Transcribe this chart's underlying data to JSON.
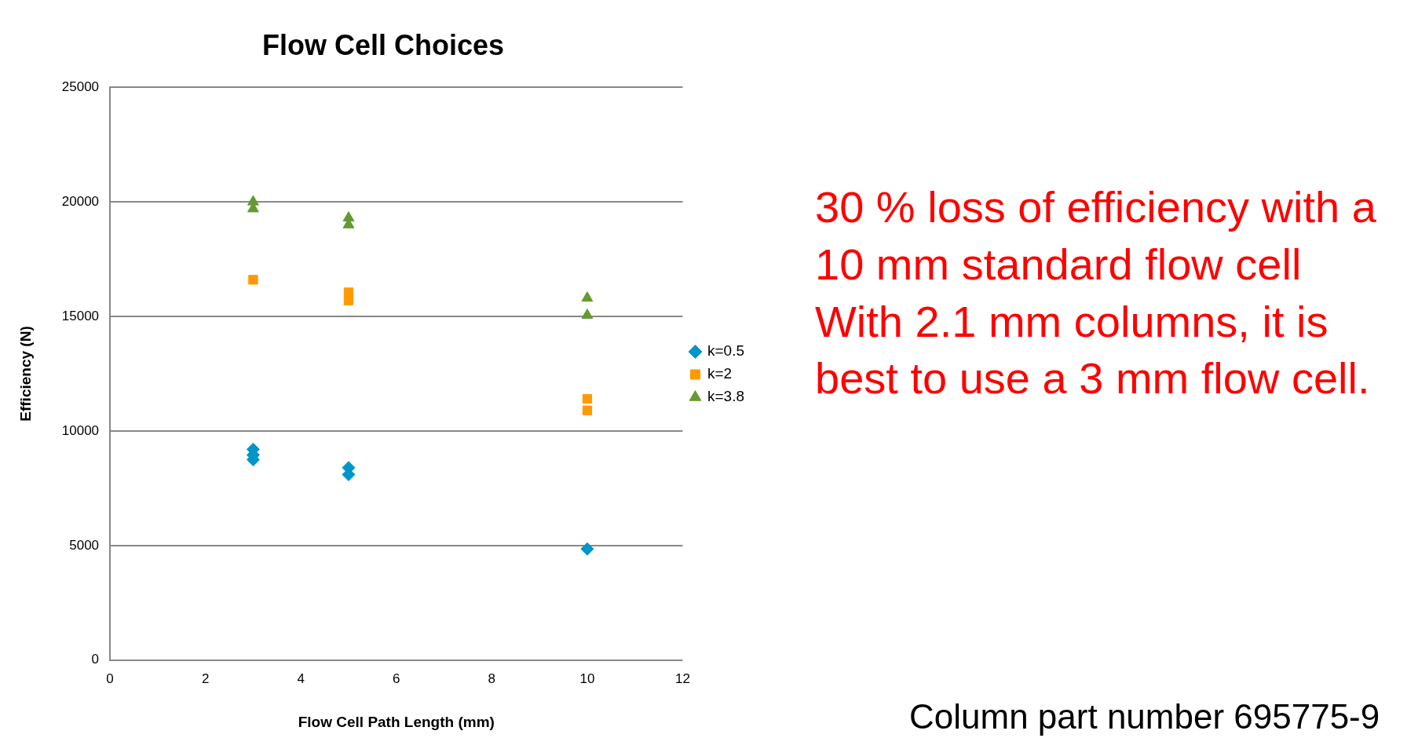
{
  "chart_data": {
    "type": "scatter",
    "title": "Flow Cell Choices",
    "xlabel": "Flow Cell Path Length (mm)",
    "ylabel": "Efficiency (N)",
    "series": [
      {
        "name": "k=0.5",
        "color": "#0096c8",
        "marker": "diamond",
        "x": [
          3,
          3,
          3,
          5,
          5,
          10
        ],
        "values": [
          9200,
          8950,
          8750,
          8400,
          8100,
          4850
        ]
      },
      {
        "name": "k=2",
        "color": "#ff9900",
        "marker": "square",
        "x": [
          3,
          5,
          5,
          10,
          10
        ],
        "values": [
          16600,
          16050,
          15700,
          11400,
          10900
        ]
      },
      {
        "name": "k=3.8",
        "color": "#669933",
        "marker": "triangle",
        "x": [
          3,
          3,
          5,
          5,
          10,
          10
        ],
        "values": [
          20000,
          19700,
          19300,
          19000,
          15800,
          15050
        ]
      }
    ],
    "xlim": [
      0,
      12
    ],
    "xticks": [
      0,
      2,
      4,
      6,
      8,
      10,
      12
    ],
    "ylim": [
      0,
      25000
    ],
    "yticks": [
      0,
      5000,
      10000,
      15000,
      20000,
      25000
    ],
    "grid": "y",
    "legend": "right",
    "annotations": [
      "30 % loss of efficiency with a 10 mm standard flow cell",
      "With 2.1 mm columns, it is best to use a 3 mm flow cell.",
      "Column part number 695775-9"
    ]
  }
}
